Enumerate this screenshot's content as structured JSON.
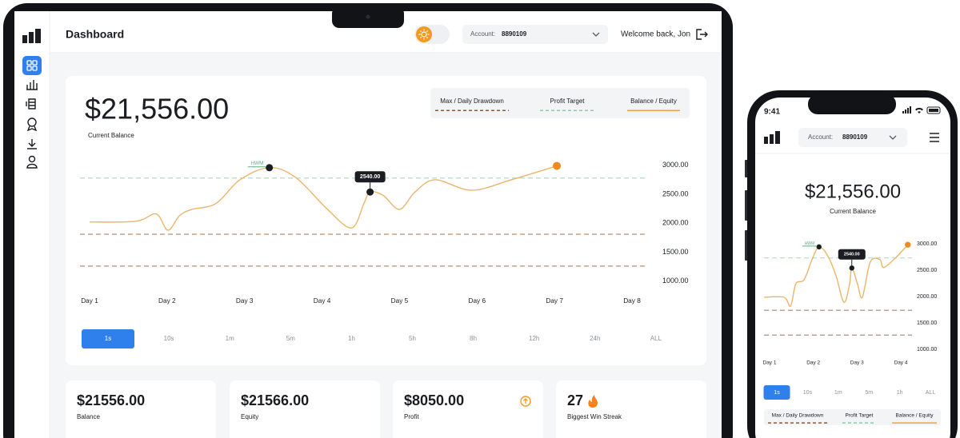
{
  "laptop": {
    "header": {
      "title": "Dashboard",
      "account_label": "Account:",
      "account_number": "8890109",
      "welcome": "Welcome back, Jon"
    },
    "balance": {
      "amount": "$21,556.00",
      "label": "Current Balance"
    },
    "timeframes": [
      "1s",
      "10s",
      "1m",
      "5m",
      "1h",
      "5h",
      "8h",
      "12h",
      "24h",
      "ALL"
    ],
    "stats": [
      {
        "value": "$21556.00",
        "label": "Balance"
      },
      {
        "value": "$21566.00",
        "label": "Equity"
      },
      {
        "value": "$8050.00",
        "label": "Profit"
      },
      {
        "value": "27",
        "label": "Biggest Win Streak"
      }
    ]
  },
  "phone": {
    "time": "9:41",
    "header": {
      "account_label": "Account:",
      "account_number": "8890109"
    },
    "balance": {
      "amount": "$21,556.00",
      "label": "Current Balance"
    },
    "timeframes": [
      "1s",
      "10s",
      "1m",
      "5m",
      "1h",
      "ALL"
    ]
  },
  "chart_data": [
    {
      "type": "line",
      "xlim": [
        1,
        8
      ],
      "xticks": [
        {
          "value": 1,
          "label": "Day 1"
        },
        {
          "value": 2,
          "label": "Day 2"
        },
        {
          "value": 3,
          "label": "Day 3"
        },
        {
          "value": 4,
          "label": "Day 4"
        },
        {
          "value": 5,
          "label": "Day 5"
        },
        {
          "value": 6,
          "label": "Day 6"
        },
        {
          "value": 7,
          "label": "Day 7"
        },
        {
          "value": 8,
          "label": "Day 8"
        }
      ],
      "ylim": [
        900,
        3150
      ],
      "yticks": [
        {
          "value": 3000,
          "label": "3000.00"
        },
        {
          "value": 2500,
          "label": "2500.00"
        },
        {
          "value": 2000,
          "label": "2000.00"
        },
        {
          "value": 1500,
          "label": "1500.00"
        },
        {
          "value": 1000,
          "label": "1000.00"
        }
      ],
      "thresholds": [
        {
          "name": "Max / Daily Drawdown",
          "color": "#8a5a3a",
          "values": [
            1810,
            1260
          ]
        },
        {
          "name": "Profit Target",
          "color": "#8fc7a6",
          "values": [
            2780
          ]
        }
      ],
      "series": [
        {
          "name": "Balance / Equity",
          "color": "#eab56a",
          "legend_color": "#f0a040",
          "end_color": "#f08a1c",
          "x": [
            1,
            1.6,
            1.86,
            2.01,
            2.16,
            2.32,
            2.63,
            2.94,
            3.32,
            3.66,
            4.07,
            4.38,
            4.54,
            4.62,
            4.79,
            5.0,
            5.2,
            5.46,
            5.93,
            6.44,
            7.03
          ],
          "values": [
            2020,
            2035,
            2160,
            1880,
            2130,
            2240,
            2340,
            2750,
            2960,
            2790,
            2240,
            1920,
            2340,
            2540,
            2480,
            2240,
            2540,
            2750,
            2570,
            2750,
            2990
          ],
          "value_labels": [
            null,
            null,
            null,
            null,
            null,
            null,
            null,
            null,
            null,
            null,
            null,
            null,
            null,
            "2540.00",
            null,
            null,
            null,
            null,
            null,
            null,
            null
          ]
        }
      ],
      "annotations": [
        {
          "text": "HWM",
          "x": 3.32,
          "y": 2960
        }
      ]
    },
    {
      "type": "line",
      "xlim": [
        1,
        4
      ],
      "xticks": [
        {
          "value": 1,
          "label": "Day 1"
        },
        {
          "value": 2,
          "label": "Day 2"
        },
        {
          "value": 3,
          "label": "Day 3"
        },
        {
          "value": 4,
          "label": "Day 4"
        }
      ],
      "ylim": [
        880,
        3150
      ],
      "yticks": [
        {
          "value": 3000,
          "label": "3000.00"
        },
        {
          "value": 2500,
          "label": "2500.00"
        },
        {
          "value": 2000,
          "label": "2000.00"
        },
        {
          "value": 1500,
          "label": "1500.00"
        },
        {
          "value": 1000,
          "label": "1000.00"
        }
      ],
      "thresholds": [
        {
          "name": "Max / Daily Drawdown",
          "color": "#8a5a3a",
          "values": [
            1740,
            1270
          ]
        },
        {
          "name": "Profit Target",
          "color": "#8fc7a6",
          "values": [
            2730
          ]
        }
      ],
      "series": [
        {
          "name": "Balance / Equity",
          "color": "#eab56a",
          "legend_color": "#f0a040",
          "end_color": "#f08a1c",
          "x": [
            0.87,
            1.33,
            1.48,
            1.6,
            1.79,
            1.97,
            2.13,
            2.33,
            2.52,
            2.7,
            2.83,
            2.88,
            3.01,
            3.12,
            3.3,
            3.52,
            3.61,
            3.89,
            4.16
          ],
          "values": [
            1985,
            1985,
            1820,
            2240,
            2320,
            2700,
            2940,
            2770,
            2390,
            1890,
            2240,
            2540,
            2240,
            1985,
            2650,
            2700,
            2550,
            2740,
            2980
          ],
          "value_labels": [
            null,
            null,
            null,
            null,
            null,
            null,
            null,
            null,
            null,
            null,
            null,
            "2540.00",
            null,
            null,
            null,
            null,
            null,
            null,
            null
          ]
        }
      ],
      "annotations": [
        {
          "text": "HWM",
          "x": 2.13,
          "y": 2940
        }
      ]
    }
  ]
}
